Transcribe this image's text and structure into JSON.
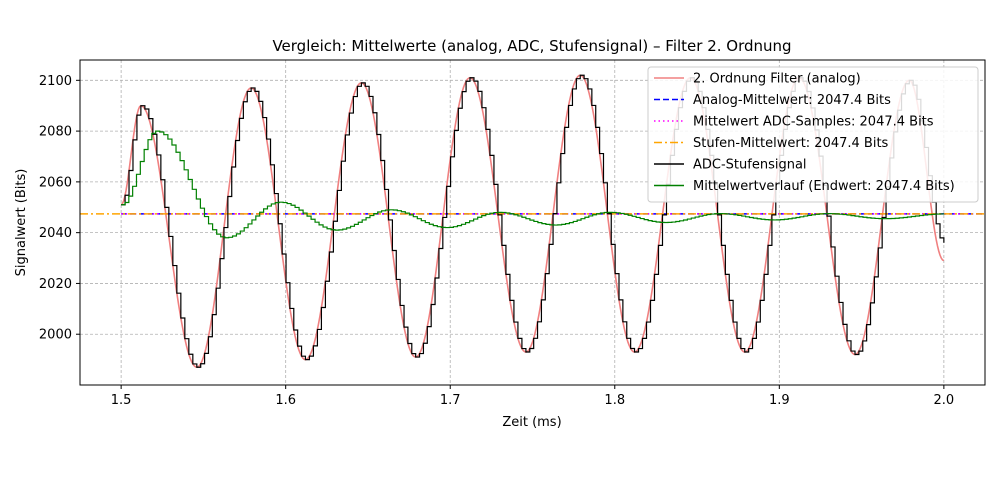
{
  "chart_data": {
    "type": "line",
    "title": "Vergleich: Mittelwerte (analog, ADC, Stufensignal) – Filter 2. Ordnung",
    "xlabel": "Zeit (ms)",
    "ylabel": "Signalwert (Bits)",
    "xlim": [
      1.475,
      2.025
    ],
    "ylim": [
      1980,
      2108
    ],
    "xticks": [
      1.5,
      1.6,
      1.7,
      1.8,
      1.9,
      2.0
    ],
    "xtick_labels": [
      "1.5",
      "1.6",
      "1.7",
      "1.8",
      "1.9",
      "2.0"
    ],
    "yticks": [
      2000,
      2020,
      2040,
      2060,
      2080,
      2100
    ],
    "ytick_labels": [
      "2000",
      "2020",
      "2040",
      "2060",
      "2080",
      "2100"
    ],
    "grid": true,
    "legend_position": "top-right",
    "series": [
      {
        "name": "2. Ordnung Filter (analog)",
        "color": "#f08080",
        "style": "solid",
        "x": [
          1.5,
          1.512,
          1.546,
          1.579,
          1.612,
          1.646,
          1.679,
          1.712,
          1.746,
          1.779,
          1.812,
          1.846,
          1.879,
          1.912,
          1.946,
          1.979,
          2.0
        ],
        "y": [
          2051,
          2090,
          1987,
          2097,
          1990,
          2099,
          1991,
          2101,
          1993,
          2102,
          1993,
          2101,
          1993,
          2101,
          1992,
          2100,
          2029
        ]
      },
      {
        "name": "Analog-Mittelwert: 2047.4 Bits",
        "color": "#0000ff",
        "style": "dashed",
        "x": [
          1.5,
          2.025
        ],
        "y": [
          2047.4,
          2047.4
        ]
      },
      {
        "name": "Mittelwert ADC-Samples: 2047.4 Bits",
        "color": "#ff00ff",
        "style": "dotted",
        "x": [
          1.5,
          2.025
        ],
        "y": [
          2047.4,
          2047.4
        ]
      },
      {
        "name": "Stufen-Mittelwert: 2047.4 Bits",
        "color": "#ffa500",
        "style": "dashdot",
        "x": [
          1.475,
          2.025
        ],
        "y": [
          2047.4,
          2047.4
        ]
      },
      {
        "name": "ADC-Stufensignal",
        "color": "#000000",
        "style": "step",
        "x": [
          1.5,
          1.512,
          1.546,
          1.579,
          1.612,
          1.646,
          1.679,
          1.712,
          1.746,
          1.779,
          1.812,
          1.846,
          1.879,
          1.912,
          1.946,
          1.979,
          2.0
        ],
        "y": [
          2051,
          2090,
          1987,
          2097,
          1990,
          2099,
          1991,
          2101,
          1993,
          2102,
          1993,
          2101,
          1993,
          2101,
          1992,
          2100,
          2036
        ]
      },
      {
        "name": "Mittelwertverlauf (Endwert: 2047.4 Bits)",
        "color": "#008000",
        "style": "step",
        "x": [
          1.5,
          1.521,
          1.563,
          1.596,
          1.63,
          1.663,
          1.697,
          1.729,
          1.763,
          1.796,
          1.83,
          1.863,
          1.896,
          1.929,
          1.963,
          2.0
        ],
        "y": [
          2051,
          2080,
          2038,
          2052,
          2041,
          2049,
          2042,
          2048,
          2043,
          2048,
          2044,
          2047.5,
          2045,
          2047.5,
          2045.5,
          2047.4
        ]
      }
    ]
  }
}
